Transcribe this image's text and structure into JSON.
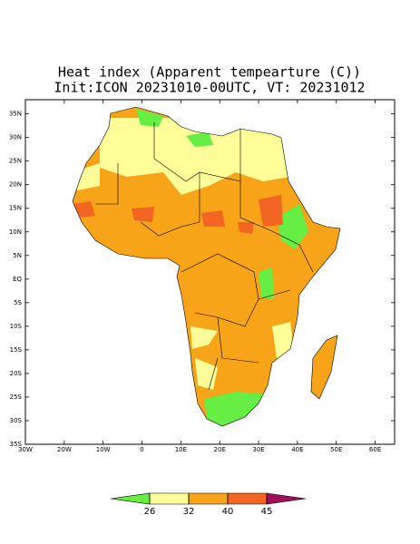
{
  "title": "Heat index (Apparent tempearture (C))",
  "subtitle": "Init:ICON 20231010-00UTC, VT: 20231012",
  "map": {
    "lon_range": [
      -30,
      65
    ],
    "lat_range": [
      -35,
      38
    ],
    "lon_ticks": [
      {
        "value": -30,
        "label": "30W"
      },
      {
        "value": -20,
        "label": "20W"
      },
      {
        "value": -10,
        "label": "10W"
      },
      0,
      {
        "value": 10,
        "label": "10E"
      },
      {
        "value": 20,
        "label": "20E"
      },
      {
        "value": 30,
        "label": "30E"
      },
      {
        "value": 40,
        "label": "40E"
      },
      {
        "value": 50,
        "label": "50E"
      },
      {
        "value": 60,
        "label": "60E"
      }
    ],
    "lat_ticks": [
      {
        "value": 35,
        "label": "35N"
      },
      {
        "value": 30,
        "label": "30N"
      },
      {
        "value": 25,
        "label": "25N"
      },
      {
        "value": 20,
        "label": "20N"
      },
      {
        "value": 15,
        "label": "15N"
      },
      {
        "value": 10,
        "label": "10N"
      },
      {
        "value": 5,
        "label": "5N"
      },
      {
        "value": 0,
        "label": "EQ"
      },
      {
        "value": -5,
        "label": "5S"
      },
      {
        "value": -10,
        "label": "10S"
      },
      {
        "value": -15,
        "label": "15S"
      },
      {
        "value": -20,
        "label": "20S"
      },
      {
        "value": -25,
        "label": "25S"
      },
      {
        "value": -30,
        "label": "30S"
      },
      {
        "value": -35,
        "label": "35S"
      }
    ]
  },
  "colorbar": {
    "levels": [
      26,
      32,
      40,
      45
    ],
    "colors": [
      "#66ee44",
      "#ffff99",
      "#f7a418",
      "#f26522",
      "#a0105a"
    ]
  }
}
